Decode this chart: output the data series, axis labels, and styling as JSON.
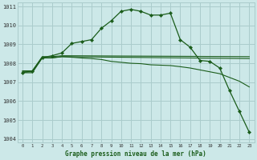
{
  "background_color": "#cce8e8",
  "grid_color": "#aacccc",
  "line_color": "#1a5c1a",
  "xlabel": "Graphe pression niveau de la mer (hPa)",
  "ylim": [
    1003.8,
    1011.2
  ],
  "xlim": [
    -0.5,
    23.5
  ],
  "yticks": [
    1004,
    1005,
    1006,
    1007,
    1008,
    1009,
    1010,
    1011
  ],
  "xticks": [
    0,
    1,
    2,
    3,
    4,
    5,
    6,
    7,
    8,
    9,
    10,
    11,
    12,
    13,
    14,
    15,
    16,
    17,
    18,
    19,
    20,
    21,
    22,
    23
  ],
  "series1_x": [
    0,
    1,
    2,
    3,
    4,
    5,
    6,
    7,
    8,
    9,
    10,
    11,
    12,
    13,
    14,
    15,
    16,
    17,
    18,
    19,
    20,
    21,
    22,
    23
  ],
  "series1_y": [
    1007.5,
    1007.6,
    1008.3,
    1008.4,
    1008.55,
    1009.05,
    1009.15,
    1009.25,
    1009.85,
    1010.25,
    1010.75,
    1010.85,
    1010.75,
    1010.55,
    1010.55,
    1010.65,
    1009.25,
    1008.85,
    1008.15,
    1008.1,
    1007.75,
    1006.55,
    1005.45,
    1004.35
  ],
  "series2_x": [
    0,
    1,
    2,
    3,
    4,
    23
  ],
  "series2_y": [
    1007.6,
    1007.6,
    1008.35,
    1008.35,
    1008.4,
    1008.35
  ],
  "series3_x": [
    0,
    1,
    2,
    3,
    4,
    23
  ],
  "series3_y": [
    1007.55,
    1007.55,
    1008.3,
    1008.3,
    1008.35,
    1008.25
  ],
  "series4_x": [
    0,
    1,
    2,
    3,
    4,
    5,
    6,
    7,
    8,
    9,
    10,
    11,
    12,
    13,
    14,
    15,
    16,
    17,
    18,
    19,
    20,
    21,
    22,
    23
  ],
  "series4_y": [
    1007.5,
    1007.5,
    1008.28,
    1008.28,
    1008.35,
    1008.32,
    1008.28,
    1008.25,
    1008.2,
    1008.1,
    1008.05,
    1008.0,
    1007.98,
    1007.92,
    1007.9,
    1007.88,
    1007.82,
    1007.75,
    1007.65,
    1007.55,
    1007.45,
    1007.25,
    1007.05,
    1006.75
  ]
}
